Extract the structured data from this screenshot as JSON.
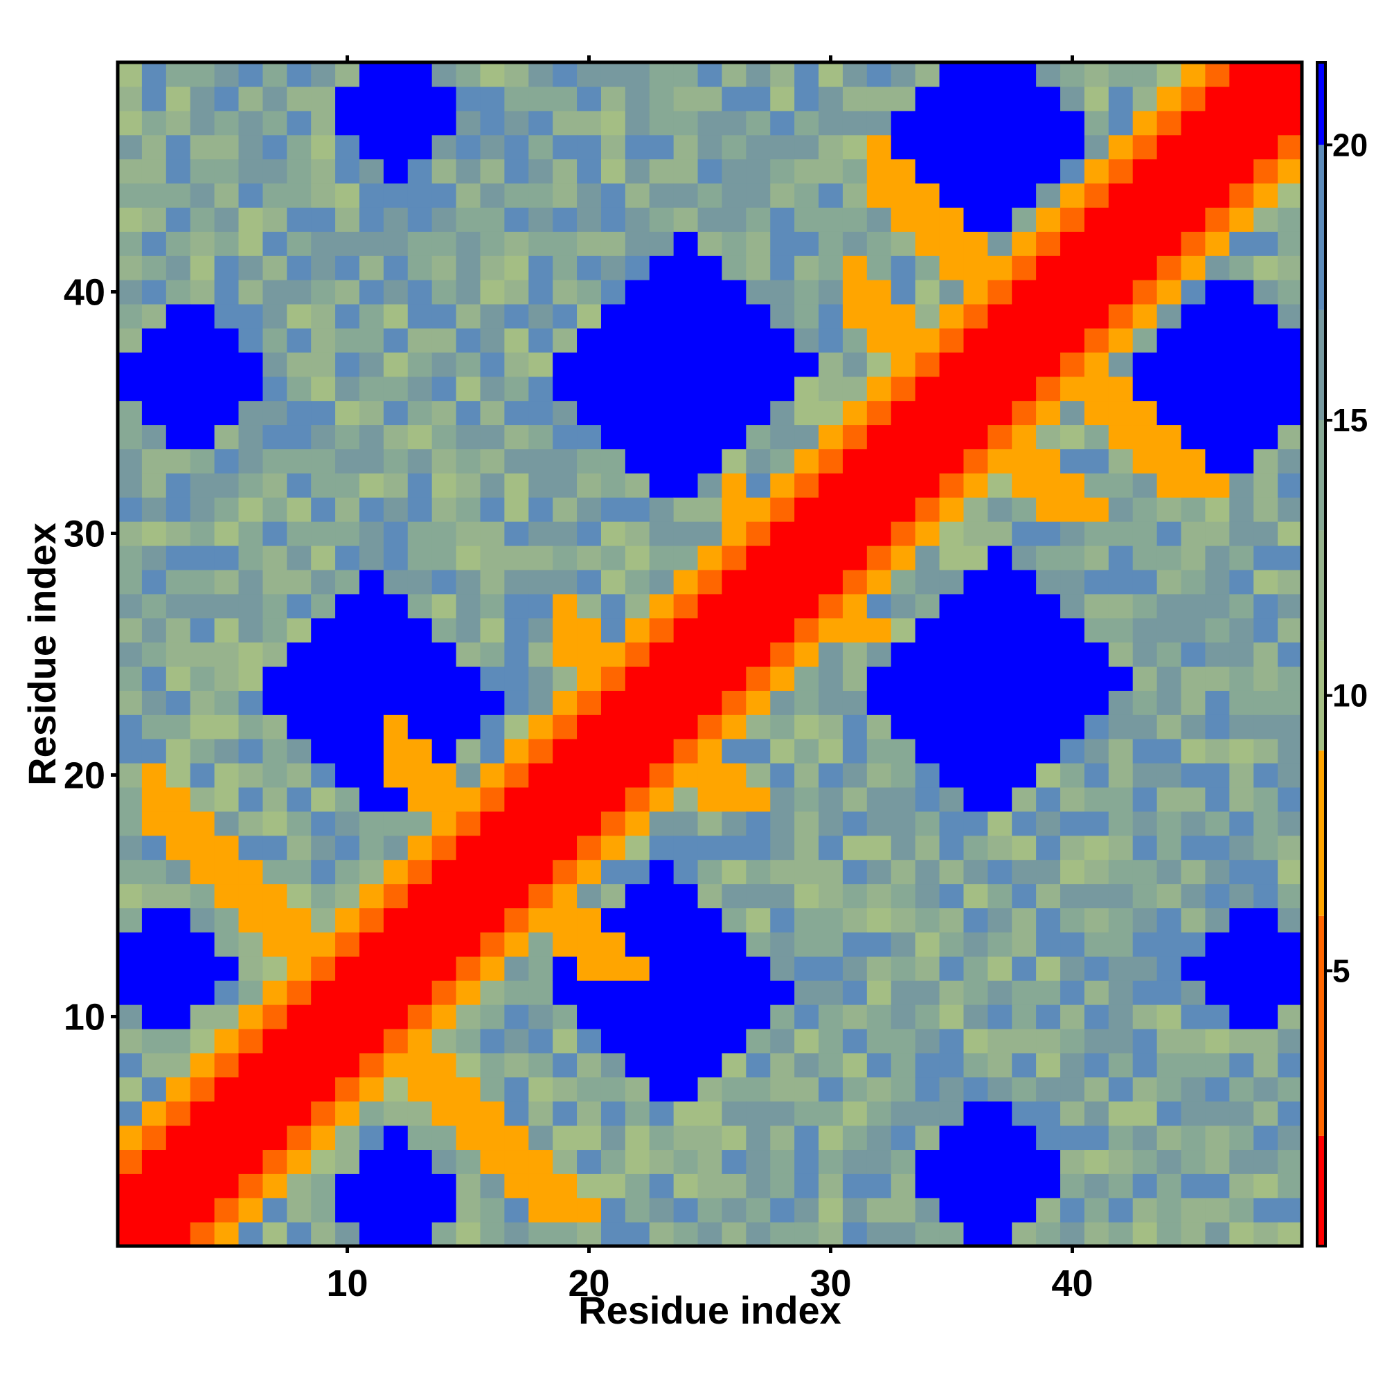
{
  "chart_data": {
    "type": "heatmap",
    "title": "",
    "xlabel": "Residue index",
    "ylabel": "Residue index",
    "n": 49,
    "x_ticks": [
      10,
      20,
      30,
      40
    ],
    "y_ticks": [
      10,
      20,
      30,
      40
    ],
    "colorbar": {
      "ticks": [
        5,
        10,
        15,
        20
      ],
      "range": [
        0,
        21.5
      ],
      "scale": [
        {
          "min": 0,
          "max": 2,
          "color": "#ff0000"
        },
        {
          "min": 2,
          "max": 6,
          "color": "#ff6600"
        },
        {
          "min": 6,
          "max": 9,
          "color": "#ffa500"
        },
        {
          "min": 9,
          "max": 11,
          "color": "#a4be84"
        },
        {
          "min": 11,
          "max": 13,
          "color": "#97b38d"
        },
        {
          "min": 13,
          "max": 15,
          "color": "#87a995"
        },
        {
          "min": 15,
          "max": 17,
          "color": "#77999f"
        },
        {
          "min": 17,
          "max": 20,
          "color": "#5d8bba"
        },
        {
          "min": 20,
          "max": 21.5,
          "color": "#0000ff"
        }
      ]
    },
    "pattern": {
      "description": "symmetric pairwise distance map",
      "diagonal_band": {
        "max_offset": 2,
        "value": 1
      },
      "near_diagonal": [
        {
          "offset": 3,
          "value": 5
        },
        {
          "offset": 4,
          "value": 7.5
        }
      ],
      "antidiagonal_contacts": [
        {
          "i_plus_j": 21,
          "i_range": [
            2,
            9
          ],
          "value": 6
        },
        {
          "i_plus_j": 33,
          "i_range": [
            12,
            18
          ],
          "value": 6
        },
        {
          "i_plus_j": 45,
          "i_range": [
            19,
            24
          ],
          "value": 6
        },
        {
          "i_plus_j": 57,
          "i_range": [
            26,
            32
          ],
          "value": 6
        },
        {
          "i_plus_j": 71,
          "i_range": [
            31,
            38
          ],
          "value": 6
        },
        {
          "i_plus_j": 77,
          "i_range": [
            32,
            41
          ],
          "value": 6
        }
      ],
      "far_blobs": [
        {
          "cx": 11.5,
          "cy": 23,
          "r": 4.5,
          "value": 21
        },
        {
          "cx": 36.5,
          "cy": 23,
          "r": 5,
          "value": 21
        },
        {
          "cx": 24,
          "cy": 37,
          "r": 5,
          "value": 21
        },
        {
          "cx": 24,
          "cy": 11,
          "r": 4.5,
          "value": 21
        },
        {
          "cx": 37,
          "cy": 46.5,
          "r": 3.5,
          "value": 21
        },
        {
          "cx": 36,
          "cy": 3.5,
          "r": 3,
          "value": 21
        },
        {
          "cx": 12,
          "cy": 2.5,
          "r": 3,
          "value": 21
        },
        {
          "cx": 3.5,
          "cy": 36.5,
          "r": 3.5,
          "value": 21
        },
        {
          "cx": 46.5,
          "cy": 36,
          "r": 3.5,
          "value": 21
        },
        {
          "cx": 2.5,
          "cy": 12,
          "r": 2.5,
          "value": 21
        },
        {
          "cx": 47.5,
          "cy": 12,
          "r": 2.5,
          "value": 21
        },
        {
          "cx": 12,
          "cy": 47.5,
          "r": 2.5,
          "value": 21
        }
      ],
      "background_range": [
        10,
        19
      ]
    }
  }
}
